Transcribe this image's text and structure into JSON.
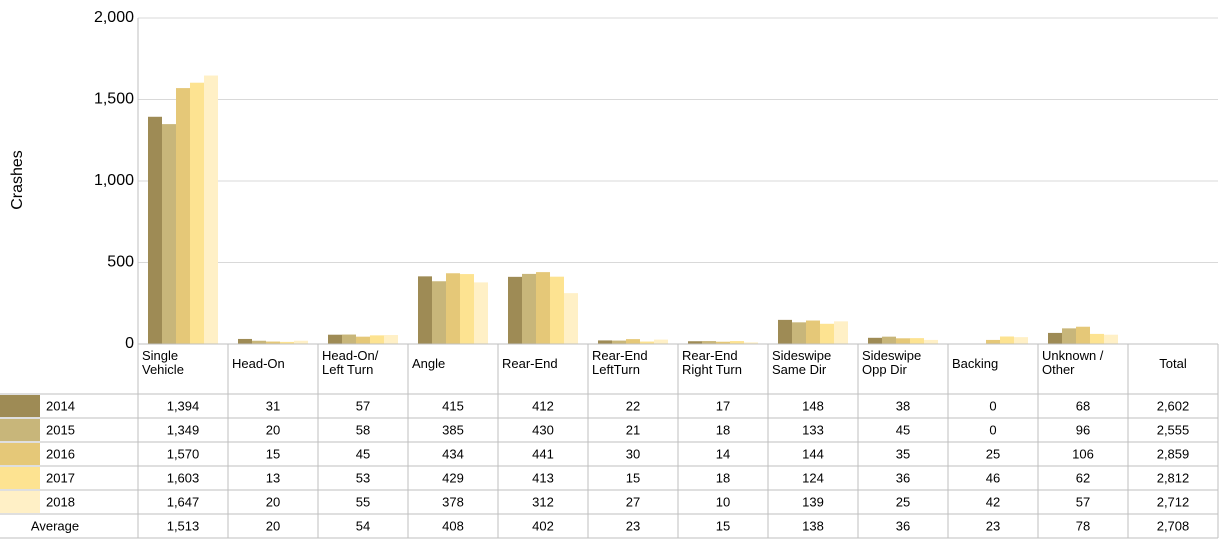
{
  "chart_data": {
    "type": "bar",
    "y_label": "Crashes",
    "categories": [
      "Single\nVehicle",
      "Head-On",
      "Head-On/\nLeft Turn",
      "Angle",
      "Rear-End",
      "Rear-End\nLeftTurn",
      "Rear-End\nRight Turn",
      "Sideswipe\nSame Dir",
      "Sideswipe\nOpp Dir",
      "Backing",
      "Unknown /\nOther"
    ],
    "total_header": "Total",
    "ylim": [
      0,
      2000
    ],
    "yticks": [
      0,
      {
        "value": 500,
        "label": "500"
      },
      {
        "value": 1000,
        "label": "1,000"
      },
      {
        "value": 1500,
        "label": "1,500"
      },
      {
        "value": 2000,
        "label": "2,000"
      }
    ],
    "grid": true,
    "series": [
      {
        "name": "2014",
        "color": "#9e8b55",
        "values": [
          1394,
          31,
          57,
          415,
          412,
          22,
          17,
          148,
          38,
          0,
          68
        ],
        "value_labels": [
          "1,394",
          "31",
          "57",
          "415",
          "412",
          "22",
          "17",
          "148",
          "38",
          "0",
          "68"
        ],
        "total": 2602,
        "total_label": "2,602"
      },
      {
        "name": "2015",
        "color": "#c8b67a",
        "values": [
          1349,
          20,
          58,
          385,
          430,
          21,
          18,
          133,
          45,
          0,
          96
        ],
        "value_labels": [
          "1,349",
          "20",
          "58",
          "385",
          "430",
          "21",
          "18",
          "133",
          "45",
          "0",
          "96"
        ],
        "total": 2555,
        "total_label": "2,555"
      },
      {
        "name": "2016",
        "color": "#e5c878",
        "values": [
          1570,
          15,
          45,
          434,
          441,
          30,
          14,
          144,
          35,
          25,
          106
        ],
        "value_labels": [
          "1,570",
          "15",
          "45",
          "434",
          "441",
          "30",
          "14",
          "144",
          "35",
          "25",
          "106"
        ],
        "total": 2859,
        "total_label": "2,859"
      },
      {
        "name": "2017",
        "color": "#fde391",
        "values": [
          1603,
          13,
          53,
          429,
          413,
          15,
          18,
          124,
          36,
          46,
          62
        ],
        "value_labels": [
          "1,603",
          "13",
          "53",
          "429",
          "413",
          "15",
          "18",
          "124",
          "36",
          "46",
          "62"
        ],
        "total": 2812,
        "total_label": "2,812"
      },
      {
        "name": "2018",
        "color": "#fff0c6",
        "values": [
          1647,
          20,
          55,
          378,
          312,
          27,
          10,
          139,
          25,
          42,
          57
        ],
        "value_labels": [
          "1,647",
          "20",
          "55",
          "378",
          "312",
          "27",
          "10",
          "139",
          "25",
          "42",
          "57"
        ],
        "total": 2712,
        "total_label": "2,712"
      }
    ],
    "average": {
      "name": "Average",
      "values": [
        1513,
        20,
        54,
        408,
        402,
        23,
        15,
        138,
        36,
        23,
        78
      ],
      "value_labels": [
        "1,513",
        "20",
        "54",
        "408",
        "402",
        "23",
        "15",
        "138",
        "36",
        "23",
        "78"
      ],
      "total": 2708,
      "total_label": "2,708"
    }
  }
}
